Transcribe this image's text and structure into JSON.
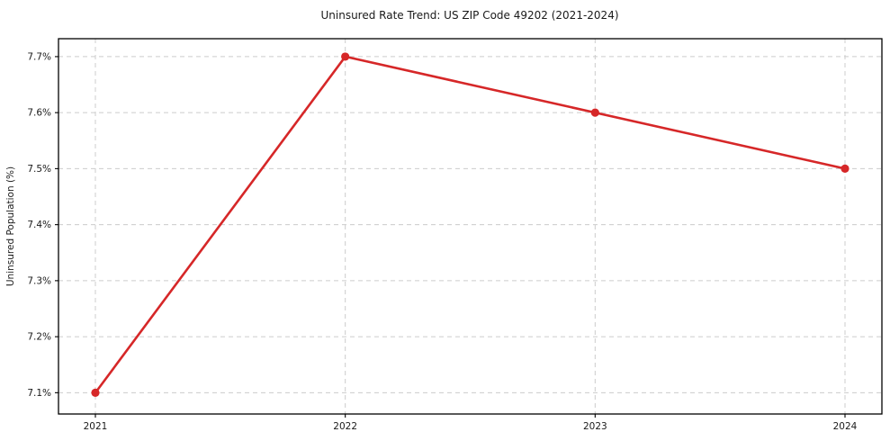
{
  "chart_data": {
    "type": "line",
    "title": "Uninsured Rate Trend: US ZIP Code 49202 (2021-2024)",
    "xlabel": "",
    "ylabel": "Uninsured Population (%)",
    "x": [
      2021,
      2022,
      2023,
      2024
    ],
    "xtick_labels": [
      "2021",
      "2022",
      "2023",
      "2024"
    ],
    "series": [
      {
        "name": "Uninsured Population (%)",
        "values": [
          7.1,
          7.7,
          7.6,
          7.5
        ]
      }
    ],
    "yticks": [
      7.1,
      7.2,
      7.3,
      7.4,
      7.5,
      7.6,
      7.7
    ],
    "ytick_labels": [
      "7.1%",
      "7.2%",
      "7.3%",
      "7.4%",
      "7.5%",
      "7.6%",
      "7.7%"
    ],
    "ylim": [
      7.062,
      7.732
    ],
    "grid": true,
    "grid_style": "dashed",
    "legend": "none",
    "colors": {
      "line": "#d62728",
      "marker": "#d62728",
      "grid": "#cccccc",
      "text": "#1a1a1a",
      "background": "#ffffff"
    }
  }
}
